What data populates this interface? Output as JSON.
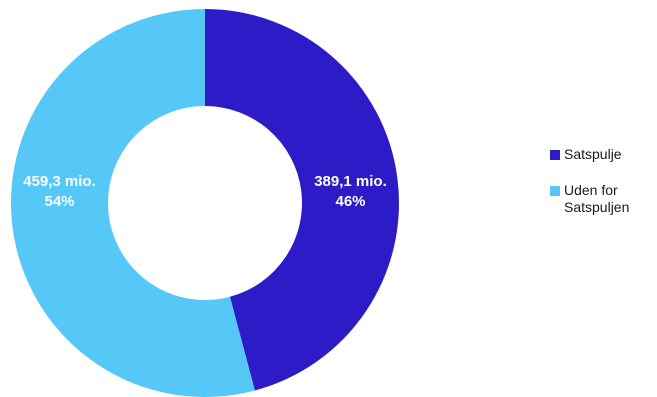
{
  "chart_data": {
    "type": "pie",
    "donut": true,
    "categories": [
      "Satspulje",
      "Uden for\nSatspuljen"
    ],
    "values": [
      389.1,
      459.3
    ],
    "percent_labels": [
      "46%",
      "54%"
    ],
    "value_labels": [
      "389,1 mio.",
      "459,3 mio."
    ],
    "colors": [
      "#2e1bc8",
      "#55c8f7"
    ],
    "legend": {
      "position": "right",
      "entries": [
        "Satspulje",
        "Uden for\nSatspuljen"
      ]
    },
    "start_angle": "12 o'clock",
    "direction": "clockwise"
  }
}
